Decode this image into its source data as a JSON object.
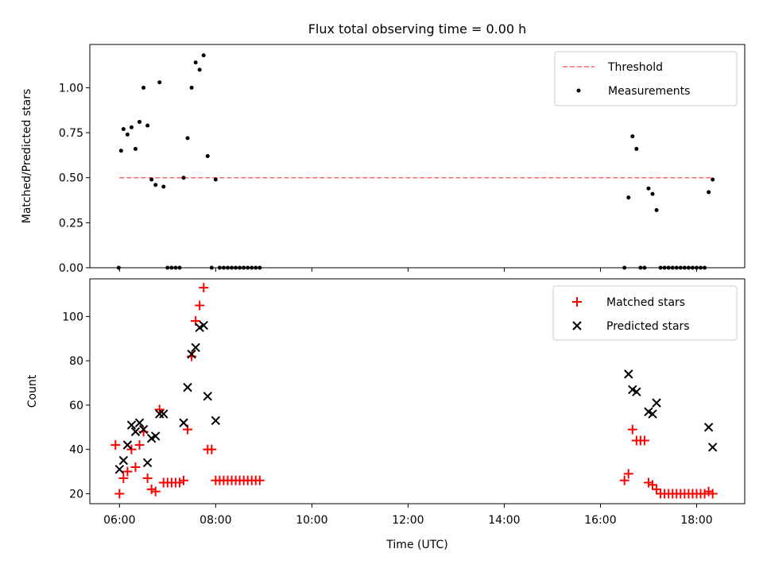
{
  "chart_data": [
    {
      "type": "scatter",
      "title": "Flux total observing time = 0.00 h",
      "ylabel": "Matched/Predicted stars",
      "xlabel": "",
      "xlim": [
        "05:23",
        "19:00"
      ],
      "ylim": [
        0,
        1.24
      ],
      "yticks": [
        0.0,
        0.25,
        0.5,
        0.75,
        1.0
      ],
      "ytick_labels": [
        "0.00",
        "0.25",
        "0.50",
        "0.75",
        "1.00"
      ],
      "legend_position": "top-right",
      "threshold": {
        "name": "Threshold",
        "x": [
          "06:00",
          "18:20"
        ],
        "y": 0.5,
        "color": "#ff6666"
      },
      "series": [
        {
          "name": "Measurements",
          "color": "#000000",
          "marker": "dot",
          "points": [
            [
              "05:59",
              0.0
            ],
            [
              "06:02",
              0.65
            ],
            [
              "06:05",
              0.77
            ],
            [
              "06:10",
              0.74
            ],
            [
              "06:15",
              0.78
            ],
            [
              "06:20",
              0.66
            ],
            [
              "06:25",
              0.81
            ],
            [
              "06:30",
              1.0
            ],
            [
              "06:35",
              0.79
            ],
            [
              "06:40",
              0.49
            ],
            [
              "06:45",
              0.46
            ],
            [
              "06:50",
              1.03
            ],
            [
              "06:55",
              0.45
            ],
            [
              "07:00",
              0.0
            ],
            [
              "07:05",
              0.0
            ],
            [
              "07:10",
              0.0
            ],
            [
              "07:15",
              0.0
            ],
            [
              "07:20",
              0.5
            ],
            [
              "07:25",
              0.72
            ],
            [
              "07:30",
              1.0
            ],
            [
              "07:35",
              1.14
            ],
            [
              "07:40",
              1.1
            ],
            [
              "07:45",
              1.18
            ],
            [
              "07:50",
              0.62
            ],
            [
              "07:55",
              0.0
            ],
            [
              "08:00",
              0.49
            ],
            [
              "08:05",
              0.0
            ],
            [
              "08:10",
              0.0
            ],
            [
              "08:15",
              0.0
            ],
            [
              "08:20",
              0.0
            ],
            [
              "08:25",
              0.0
            ],
            [
              "08:30",
              0.0
            ],
            [
              "08:35",
              0.0
            ],
            [
              "08:40",
              0.0
            ],
            [
              "08:45",
              0.0
            ],
            [
              "08:50",
              0.0
            ],
            [
              "08:55",
              0.0
            ],
            [
              "16:30",
              0.0
            ],
            [
              "16:35",
              0.39
            ],
            [
              "16:40",
              0.73
            ],
            [
              "16:45",
              0.66
            ],
            [
              "16:50",
              0.0
            ],
            [
              "16:55",
              0.0
            ],
            [
              "17:00",
              0.44
            ],
            [
              "17:05",
              0.41
            ],
            [
              "17:10",
              0.32
            ],
            [
              "17:15",
              0.0
            ],
            [
              "17:20",
              0.0
            ],
            [
              "17:25",
              0.0
            ],
            [
              "17:30",
              0.0
            ],
            [
              "17:35",
              0.0
            ],
            [
              "17:40",
              0.0
            ],
            [
              "17:45",
              0.0
            ],
            [
              "17:50",
              0.0
            ],
            [
              "17:55",
              0.0
            ],
            [
              "18:00",
              0.0
            ],
            [
              "18:05",
              0.0
            ],
            [
              "18:10",
              0.0
            ],
            [
              "18:15",
              0.42
            ],
            [
              "18:20",
              0.49
            ]
          ]
        }
      ]
    },
    {
      "type": "scatter",
      "title": "",
      "ylabel": "Count",
      "xlabel": "Time (UTC)",
      "xlim": [
        "05:23",
        "19:00"
      ],
      "ylim": [
        15.5,
        117
      ],
      "yticks": [
        20,
        40,
        60,
        80,
        100
      ],
      "ytick_labels": [
        "20",
        "40",
        "60",
        "80",
        "100"
      ],
      "xticks": [
        "06:00",
        "08:00",
        "10:00",
        "12:00",
        "14:00",
        "16:00",
        "18:00"
      ],
      "legend_position": "top-right",
      "series": [
        {
          "name": "Matched stars",
          "color": "#ff0000",
          "marker": "plus",
          "points": [
            [
              "05:55",
              42
            ],
            [
              "06:00",
              20
            ],
            [
              "06:05",
              27
            ],
            [
              "06:10",
              30
            ],
            [
              "06:15",
              40
            ],
            [
              "06:20",
              32
            ],
            [
              "06:25",
              42
            ],
            [
              "06:30",
              48
            ],
            [
              "06:35",
              27
            ],
            [
              "06:40",
              22
            ],
            [
              "06:45",
              21
            ],
            [
              "06:50",
              58
            ],
            [
              "06:55",
              25
            ],
            [
              "07:00",
              25
            ],
            [
              "07:05",
              25
            ],
            [
              "07:10",
              25
            ],
            [
              "07:15",
              25
            ],
            [
              "07:20",
              26
            ],
            [
              "07:25",
              49
            ],
            [
              "07:30",
              82
            ],
            [
              "07:35",
              98
            ],
            [
              "07:40",
              105
            ],
            [
              "07:45",
              113
            ],
            [
              "07:50",
              40
            ],
            [
              "07:55",
              40
            ],
            [
              "08:00",
              26
            ],
            [
              "08:05",
              26
            ],
            [
              "08:10",
              26
            ],
            [
              "08:15",
              26
            ],
            [
              "08:20",
              26
            ],
            [
              "08:25",
              26
            ],
            [
              "08:30",
              26
            ],
            [
              "08:35",
              26
            ],
            [
              "08:40",
              26
            ],
            [
              "08:45",
              26
            ],
            [
              "08:50",
              26
            ],
            [
              "08:55",
              26
            ],
            [
              "16:30",
              26
            ],
            [
              "16:35",
              29
            ],
            [
              "16:40",
              49
            ],
            [
              "16:45",
              44
            ],
            [
              "16:50",
              44
            ],
            [
              "16:55",
              44
            ],
            [
              "17:00",
              25
            ],
            [
              "17:05",
              24
            ],
            [
              "17:10",
              22
            ],
            [
              "17:15",
              20
            ],
            [
              "17:20",
              20
            ],
            [
              "17:25",
              20
            ],
            [
              "17:30",
              20
            ],
            [
              "17:35",
              20
            ],
            [
              "17:40",
              20
            ],
            [
              "17:45",
              20
            ],
            [
              "17:50",
              20
            ],
            [
              "17:55",
              20
            ],
            [
              "18:00",
              20
            ],
            [
              "18:05",
              20
            ],
            [
              "18:10",
              20
            ],
            [
              "18:15",
              21
            ],
            [
              "18:20",
              20
            ]
          ]
        },
        {
          "name": "Predicted stars",
          "color": "#000000",
          "marker": "x",
          "points": [
            [
              "06:00",
              31
            ],
            [
              "06:05",
              35
            ],
            [
              "06:10",
              42
            ],
            [
              "06:15",
              51
            ],
            [
              "06:20",
              48
            ],
            [
              "06:25",
              52
            ],
            [
              "06:30",
              49
            ],
            [
              "06:35",
              34
            ],
            [
              "06:40",
              45
            ],
            [
              "06:45",
              46
            ],
            [
              "06:50",
              56
            ],
            [
              "06:55",
              56
            ],
            [
              "07:20",
              52
            ],
            [
              "07:25",
              68
            ],
            [
              "07:30",
              83
            ],
            [
              "07:35",
              86
            ],
            [
              "07:40",
              95
            ],
            [
              "07:45",
              96
            ],
            [
              "07:50",
              64
            ],
            [
              "08:00",
              53
            ],
            [
              "16:35",
              74
            ],
            [
              "16:40",
              67
            ],
            [
              "16:45",
              66
            ],
            [
              "17:00",
              57
            ],
            [
              "17:05",
              56
            ],
            [
              "17:10",
              61
            ],
            [
              "18:15",
              50
            ],
            [
              "18:20",
              41
            ]
          ]
        }
      ]
    }
  ]
}
